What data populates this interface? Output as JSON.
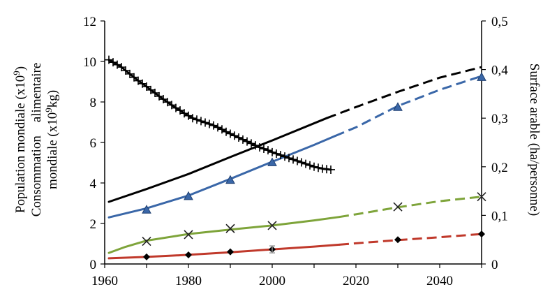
{
  "chart_data": {
    "type": "line",
    "xlabel": "",
    "x_ticks": [
      "1960",
      "1980",
      "2000",
      "2020",
      "2040"
    ],
    "xlim": [
      1960,
      2050
    ],
    "ylim_left": [
      0,
      12
    ],
    "y_ticks_left": [
      "0",
      "2",
      "4",
      "6",
      "8",
      "10",
      "12"
    ],
    "ylabel_left_line1": "Population mondiale (x10",
    "ylabel_left_line1_sup": "9",
    "ylabel_left_line1_end": ")",
    "ylabel_left_line2": "Consommation    alimentaire",
    "ylabel_left_line3": "mondiale (x10",
    "ylabel_left_line3_sup": "9",
    "ylabel_left_line3_end": "kg)",
    "ylim_right": [
      0,
      0.5
    ],
    "y_ticks_right": [
      "0",
      "0,1",
      "0,2",
      "0,3",
      "0,4",
      "0,5"
    ],
    "ylabel_right": "Surface arable (ha/personne)",
    "series": [
      {
        "axis": "left",
        "color": "#000000",
        "marker": "none",
        "solid": [
          [
            1961,
            3.07
          ],
          [
            1970,
            3.7
          ],
          [
            1980,
            4.44
          ],
          [
            1990,
            5.28
          ],
          [
            2000,
            6.1
          ],
          [
            2013,
            7.2
          ]
        ],
        "dashed": [
          [
            2013,
            7.2
          ],
          [
            2020,
            7.75
          ],
          [
            2030,
            8.5
          ],
          [
            2040,
            9.2
          ],
          [
            2050,
            9.72
          ]
        ],
        "markers": []
      },
      {
        "axis": "left",
        "color": "#3a67a8",
        "marker": "triangle",
        "solid": [
          [
            1961,
            2.3
          ],
          [
            1970,
            2.75
          ],
          [
            1980,
            3.38
          ],
          [
            1990,
            4.2
          ],
          [
            2000,
            5.05
          ],
          [
            2010,
            5.88
          ],
          [
            2015,
            6.32
          ]
        ],
        "dashed": [
          [
            2015,
            6.32
          ],
          [
            2020,
            6.75
          ],
          [
            2030,
            7.8
          ],
          [
            2040,
            8.6
          ],
          [
            2050,
            9.28
          ]
        ],
        "markers": [
          [
            1970,
            2.68
          ],
          [
            1980,
            3.35
          ],
          [
            1990,
            4.15
          ],
          [
            2000,
            5.02
          ],
          [
            2030,
            7.75
          ],
          [
            2050,
            9.23
          ]
        ]
      },
      {
        "axis": "left",
        "color": "#7ea43a",
        "marker": "x",
        "solid": [
          [
            1961,
            0.55
          ],
          [
            1965,
            0.85
          ],
          [
            1970,
            1.15
          ],
          [
            1980,
            1.48
          ],
          [
            1990,
            1.7
          ],
          [
            2000,
            1.9
          ],
          [
            2010,
            2.15
          ],
          [
            2016,
            2.32
          ]
        ],
        "dashed": [
          [
            2016,
            2.32
          ],
          [
            2020,
            2.45
          ],
          [
            2030,
            2.8
          ],
          [
            2040,
            3.1
          ],
          [
            2050,
            3.32
          ]
        ],
        "markers": [
          [
            1970,
            1.12
          ],
          [
            1980,
            1.45
          ],
          [
            1990,
            1.75
          ],
          [
            2000,
            1.9
          ],
          [
            2030,
            2.82
          ],
          [
            2050,
            3.32
          ]
        ]
      },
      {
        "axis": "left",
        "color": "#c0392b",
        "marker": "diamond",
        "solid": [
          [
            1961,
            0.28
          ],
          [
            1970,
            0.35
          ],
          [
            1980,
            0.45
          ],
          [
            1990,
            0.58
          ],
          [
            2000,
            0.72
          ],
          [
            2010,
            0.86
          ],
          [
            2016,
            0.95
          ]
        ],
        "dashed": [
          [
            2016,
            0.95
          ],
          [
            2020,
            1.02
          ],
          [
            2030,
            1.18
          ],
          [
            2040,
            1.32
          ],
          [
            2050,
            1.48
          ]
        ],
        "markers": [
          [
            1970,
            0.35
          ],
          [
            1980,
            0.45
          ],
          [
            1990,
            0.6
          ],
          [
            2000,
            0.72
          ],
          [
            2030,
            1.2
          ],
          [
            2050,
            1.48
          ]
        ]
      },
      {
        "axis": "right",
        "color": "#000000",
        "marker": "plus",
        "solid": [
          [
            1961,
            0.42
          ],
          [
            1962,
            0.415
          ],
          [
            1963,
            0.41
          ],
          [
            1964,
            0.405
          ],
          [
            1965,
            0.398
          ],
          [
            1966,
            0.391
          ],
          [
            1967,
            0.384
          ],
          [
            1968,
            0.377
          ],
          [
            1969,
            0.371
          ],
          [
            1970,
            0.365
          ],
          [
            1971,
            0.358
          ],
          [
            1972,
            0.352
          ],
          [
            1973,
            0.345
          ],
          [
            1974,
            0.339
          ],
          [
            1975,
            0.333
          ],
          [
            1976,
            0.327
          ],
          [
            1977,
            0.321
          ],
          [
            1978,
            0.316
          ],
          [
            1979,
            0.31
          ],
          [
            1980,
            0.305
          ],
          [
            1981,
            0.3
          ],
          [
            1982,
            0.297
          ],
          [
            1983,
            0.294
          ],
          [
            1984,
            0.291
          ],
          [
            1985,
            0.288
          ],
          [
            1986,
            0.285
          ],
          [
            1987,
            0.281
          ],
          [
            1988,
            0.277
          ],
          [
            1989,
            0.272
          ],
          [
            1990,
            0.268
          ],
          [
            1991,
            0.264
          ],
          [
            1992,
            0.26
          ],
          [
            1993,
            0.256
          ],
          [
            1994,
            0.252
          ],
          [
            1995,
            0.248
          ],
          [
            1996,
            0.244
          ],
          [
            1997,
            0.24
          ],
          [
            1998,
            0.237
          ],
          [
            1999,
            0.234
          ],
          [
            2000,
            0.23
          ],
          [
            2001,
            0.227
          ],
          [
            2002,
            0.224
          ],
          [
            2003,
            0.221
          ],
          [
            2004,
            0.218
          ],
          [
            2005,
            0.215
          ],
          [
            2006,
            0.212
          ],
          [
            2007,
            0.209
          ],
          [
            2008,
            0.206
          ],
          [
            2009,
            0.203
          ],
          [
            2010,
            0.2
          ],
          [
            2011,
            0.198
          ],
          [
            2012,
            0.196
          ],
          [
            2013,
            0.195
          ],
          [
            2014,
            0.194
          ]
        ],
        "dashed": [],
        "markers": "same_as_solid"
      }
    ],
    "extra_markers": [
      {
        "axis": "left",
        "shape": "error-bar",
        "x": 2000,
        "y": 0.72,
        "color": "#999999"
      }
    ]
  }
}
